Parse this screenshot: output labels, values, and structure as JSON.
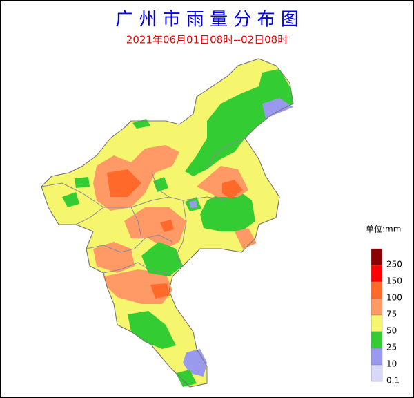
{
  "title": "广 州 市 雨 量 分 布 图",
  "subtitle": "2021年06月01日08时--02日08时",
  "legend": {
    "unit": "单位:mm",
    "items": [
      {
        "label": "250",
        "color": "#8b0000"
      },
      {
        "label": "150",
        "color": "#ff0000"
      },
      {
        "label": "100",
        "color": "#ff6a2a"
      },
      {
        "label": "75",
        "color": "#ff9966"
      },
      {
        "label": "50",
        "color": "#f5f56e"
      },
      {
        "label": "25",
        "color": "#33cc33"
      },
      {
        "label": "10",
        "color": "#9999ee"
      },
      {
        "label": "0.1",
        "color": "#d8d8f8"
      }
    ]
  }
}
